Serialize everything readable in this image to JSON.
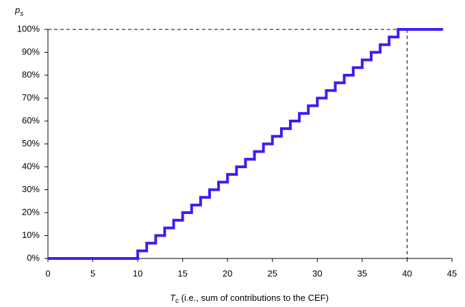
{
  "chart_data": {
    "type": "step",
    "xlabel": {
      "main": "T",
      "sub": "c",
      "rest": " (i.e., sum of contributions to the CEF)"
    },
    "ylabel": {
      "main": "p",
      "sub": "s"
    },
    "x": [
      0,
      1,
      2,
      3,
      4,
      5,
      6,
      7,
      8,
      9,
      10,
      11,
      12,
      13,
      14,
      15,
      16,
      17,
      18,
      19,
      20,
      21,
      22,
      23,
      24,
      25,
      26,
      27,
      28,
      29,
      30,
      31,
      32,
      33,
      34,
      35,
      36,
      37,
      38,
      39,
      40,
      41,
      42,
      43,
      44
    ],
    "series": [
      {
        "color": "#3b1ff2",
        "values": [
          0,
          0,
          0,
          0,
          0,
          0,
          0,
          0,
          0,
          0,
          0,
          3.33,
          6.67,
          10,
          13.33,
          16.67,
          20,
          23.33,
          26.67,
          30,
          33.33,
          36.67,
          40,
          43.33,
          46.67,
          50,
          53.33,
          56.67,
          60,
          63.33,
          66.67,
          70,
          73.33,
          76.67,
          80,
          83.33,
          86.67,
          90,
          93.33,
          96.67,
          100,
          100,
          100,
          100,
          100
        ]
      }
    ],
    "guides": {
      "x": 40,
      "y": 100
    },
    "xlim": [
      0,
      45
    ],
    "xticks": [
      0,
      5,
      10,
      15,
      20,
      25,
      30,
      35,
      40,
      45
    ],
    "ylim": [
      0,
      100
    ],
    "yticks": [
      {
        "value": 0,
        "label": "0%"
      },
      {
        "value": 10,
        "label": "10%"
      },
      {
        "value": 20,
        "label": "20%"
      },
      {
        "value": 30,
        "label": "30%"
      },
      {
        "value": 40,
        "label": "40%"
      },
      {
        "value": 50,
        "label": "50%"
      },
      {
        "value": 60,
        "label": "60%"
      },
      {
        "value": 70,
        "label": "70%"
      },
      {
        "value": 80,
        "label": "80%"
      },
      {
        "value": 90,
        "label": "90%"
      },
      {
        "value": 100,
        "label": "100%"
      }
    ]
  }
}
